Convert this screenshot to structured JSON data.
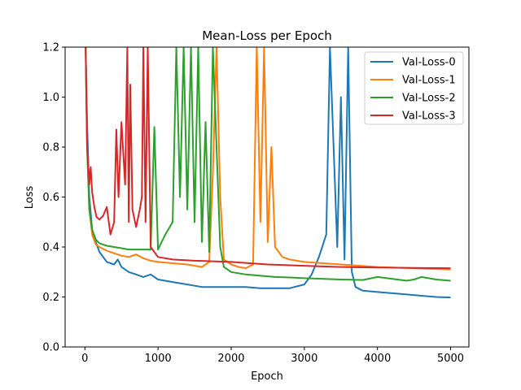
{
  "chart_data": {
    "type": "line",
    "title": "Mean-Loss per Epoch",
    "xlabel": "Epoch",
    "ylabel": "Loss",
    "xlim": [
      -270,
      5250
    ],
    "ylim": [
      0.0,
      1.2
    ],
    "xticks": [
      0,
      1000,
      2000,
      3000,
      4000,
      5000
    ],
    "xtick_labels": [
      "0",
      "1000",
      "2000",
      "3000",
      "4000",
      "5000"
    ],
    "yticks": [
      0.0,
      0.2,
      0.4,
      0.6,
      0.8,
      1.0,
      1.2
    ],
    "ytick_labels": [
      "0.0",
      "0.2",
      "0.4",
      "0.6",
      "0.8",
      "1.0",
      "1.2"
    ],
    "grid": false,
    "legend_position": "top-right",
    "series": [
      {
        "name": "Val-Loss-0",
        "color": "#1f77b4",
        "x": [
          10,
          30,
          60,
          100,
          150,
          200,
          300,
          400,
          450,
          500,
          600,
          700,
          800,
          900,
          1000,
          1200,
          1400,
          1600,
          1800,
          2000,
          2200,
          2400,
          2600,
          2800,
          3000,
          3100,
          3200,
          3300,
          3350,
          3400,
          3450,
          3500,
          3550,
          3600,
          3650,
          3700,
          3800,
          4000,
          4200,
          4400,
          4600,
          4800,
          5000
        ],
        "y": [
          1.2,
          0.9,
          0.6,
          0.47,
          0.42,
          0.38,
          0.34,
          0.33,
          0.35,
          0.32,
          0.3,
          0.29,
          0.28,
          0.29,
          0.27,
          0.26,
          0.25,
          0.24,
          0.24,
          0.24,
          0.24,
          0.235,
          0.235,
          0.235,
          0.25,
          0.29,
          0.36,
          0.45,
          1.2,
          0.8,
          0.4,
          1.0,
          0.35,
          1.2,
          0.3,
          0.24,
          0.225,
          0.22,
          0.215,
          0.21,
          0.205,
          0.2,
          0.198
        ]
      },
      {
        "name": "Val-Loss-1",
        "color": "#ff7f0e",
        "x": [
          10,
          30,
          60,
          100,
          150,
          200,
          300,
          400,
          500,
          600,
          700,
          800,
          900,
          1000,
          1200,
          1400,
          1600,
          1700,
          1750,
          1800,
          1850,
          1900,
          2000,
          2100,
          2200,
          2300,
          2350,
          2400,
          2450,
          2500,
          2550,
          2600,
          2700,
          2800,
          3000,
          3500,
          4000,
          4500,
          5000
        ],
        "y": [
          1.2,
          0.8,
          0.55,
          0.45,
          0.41,
          0.4,
          0.385,
          0.375,
          0.365,
          0.36,
          0.37,
          0.355,
          0.345,
          0.34,
          0.335,
          0.33,
          0.32,
          0.34,
          0.7,
          1.2,
          0.6,
          0.35,
          0.33,
          0.32,
          0.315,
          0.33,
          1.2,
          0.5,
          1.2,
          0.42,
          0.8,
          0.4,
          0.36,
          0.35,
          0.34,
          0.33,
          0.32,
          0.315,
          0.31
        ]
      },
      {
        "name": "Val-Loss-2",
        "color": "#2ca02c",
        "x": [
          10,
          30,
          60,
          100,
          150,
          200,
          300,
          400,
          500,
          600,
          700,
          800,
          900,
          950,
          1000,
          1100,
          1200,
          1250,
          1300,
          1350,
          1400,
          1450,
          1500,
          1550,
          1600,
          1650,
          1700,
          1750,
          1800,
          1850,
          1900,
          2000,
          2200,
          2400,
          2600,
          2800,
          3000,
          3500,
          3800,
          4000,
          4400,
          4500,
          4600,
          4700,
          4800,
          5000
        ],
        "y": [
          1.2,
          0.8,
          0.55,
          0.47,
          0.43,
          0.415,
          0.405,
          0.4,
          0.395,
          0.39,
          0.39,
          0.39,
          0.39,
          0.88,
          0.39,
          0.45,
          0.5,
          1.2,
          0.6,
          1.2,
          0.55,
          1.2,
          0.5,
          1.2,
          0.42,
          0.9,
          0.38,
          1.2,
          0.8,
          0.4,
          0.32,
          0.3,
          0.29,
          0.285,
          0.28,
          0.278,
          0.275,
          0.27,
          0.268,
          0.28,
          0.265,
          0.27,
          0.28,
          0.275,
          0.27,
          0.265
        ]
      },
      {
        "name": "Val-Loss-3",
        "color": "#d62728",
        "x": [
          10,
          30,
          60,
          80,
          100,
          130,
          160,
          200,
          250,
          300,
          350,
          400,
          430,
          460,
          500,
          550,
          580,
          600,
          620,
          650,
          700,
          750,
          780,
          800,
          830,
          860,
          900,
          1000,
          1200,
          1500,
          2000,
          2500,
          3000,
          3500,
          4000,
          4500,
          5000
        ],
        "y": [
          1.2,
          0.8,
          0.65,
          0.72,
          0.62,
          0.56,
          0.52,
          0.51,
          0.525,
          0.56,
          0.45,
          0.5,
          0.87,
          0.6,
          0.9,
          0.65,
          1.2,
          0.5,
          1.05,
          0.55,
          0.48,
          0.55,
          0.6,
          1.2,
          0.5,
          1.2,
          0.4,
          0.36,
          0.35,
          0.345,
          0.34,
          0.33,
          0.325,
          0.32,
          0.318,
          0.316,
          0.315
        ]
      }
    ]
  }
}
